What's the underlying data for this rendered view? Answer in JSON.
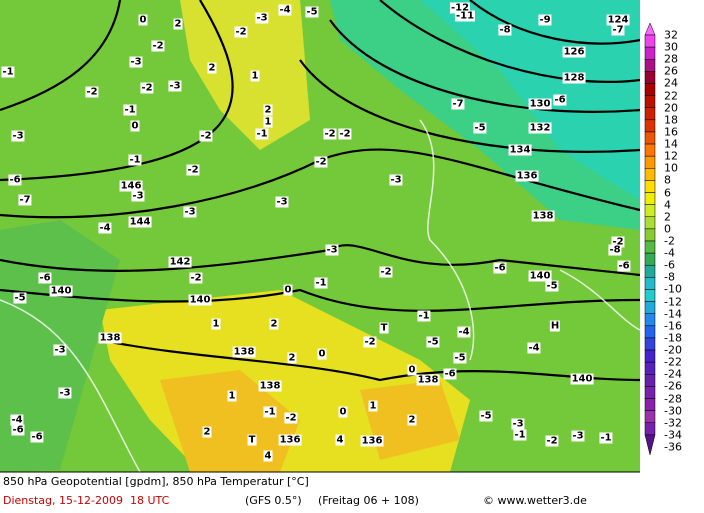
{
  "map": {
    "labels": [
      "0",
      "2",
      "-3",
      "-4",
      "-5",
      "-12",
      "-11",
      "-9",
      "-8",
      "124",
      "-7",
      "-2",
      "-2",
      "-3",
      "2",
      "1",
      "126",
      "128",
      "-1",
      "-2",
      "-2",
      "-3",
      "0",
      "-1",
      "2",
      "1",
      "-1",
      "130",
      "-6",
      "-7",
      "132",
      "-5",
      "-2",
      "-3",
      "-2",
      "-2",
      "134",
      "-1",
      "-2",
      "146",
      "-3",
      "-2",
      "136",
      "-3",
      "-6",
      "-7",
      "-3",
      "-3",
      "138",
      "144",
      "-4",
      "-3",
      "-2",
      "-8",
      "142",
      "-2",
      "-6",
      "140",
      "-5",
      "-6",
      "-6",
      "-2",
      "-1",
      "0",
      "-5",
      "140",
      "140",
      "1",
      "2",
      "T",
      "-4",
      "H",
      "138",
      "138",
      "2",
      "0",
      "-5",
      "-5",
      "-4",
      "-3",
      "-2",
      "-1",
      "0",
      "-6",
      "138",
      "140",
      "1",
      "138",
      "-3",
      "-1",
      "-2",
      "0",
      "1",
      "-5",
      "-3",
      "-1",
      "-4",
      "-6",
      "-6",
      "2",
      "T",
      "4",
      "136",
      "4",
      "136",
      "-2",
      "-1",
      "-3",
      "2"
    ]
  },
  "colorbar": {
    "labels": [
      32,
      30,
      28,
      26,
      24,
      22,
      20,
      18,
      16,
      14,
      12,
      10,
      8,
      6,
      4,
      2,
      0,
      -2,
      -4,
      -6,
      -8,
      -10,
      -12,
      -14,
      -16,
      -18,
      -20,
      -22,
      -24,
      -26,
      -28,
      -30,
      -32,
      -34,
      -36
    ],
    "colors": [
      "#ff66ff",
      "#ee44ee",
      "#cc22cc",
      "#aa1188",
      "#990033",
      "#aa0000",
      "#bb1100",
      "#cc2200",
      "#dd3300",
      "#ee5500",
      "#ff7700",
      "#ff9900",
      "#ffbb00",
      "#ffdd00",
      "#eeee00",
      "#ccee22",
      "#aade33",
      "#88cc33",
      "#55bb44",
      "#33aa55",
      "#22aa99",
      "#22bbcc",
      "#22cccc",
      "#22aadd",
      "#2288ee",
      "#2266ee",
      "#3344dd",
      "#4422cc",
      "#5522bb",
      "#6622aa",
      "#7722aa",
      "#8822aa",
      "#9933aa",
      "#7722aa",
      "#551188"
    ]
  },
  "footer": {
    "title": "850 hPa Geopotential [gpdm], 850 hPa Temperatur [°C]",
    "date": "Dienstag, 15-12-2009  18 UTC",
    "model": "(GFS 0.5°)",
    "run": "(Freitag 06 + 108)",
    "credit": "© www.wetter3.de"
  }
}
